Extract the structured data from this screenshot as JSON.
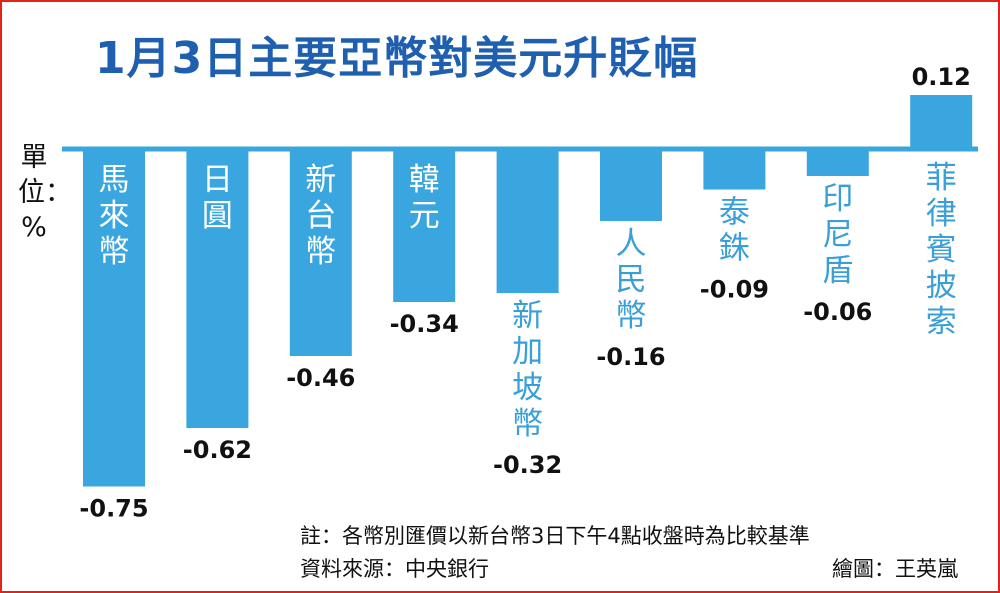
{
  "header": {
    "title": "1月3日主要亞幣對美元升貶幅"
  },
  "unit_label": "單位：%",
  "chart_data": {
    "type": "bar",
    "title": "1月3日主要亞幣對美元升貶幅",
    "ylabel": "單位：%",
    "categories": [
      "馬來幣",
      "日圓",
      "新台幣",
      "韓元",
      "新加坡幣",
      "人民幣",
      "泰銖",
      "印尼盾",
      "菲律賓披索"
    ],
    "values": [
      -0.75,
      -0.62,
      -0.46,
      -0.34,
      -0.32,
      -0.16,
      -0.09,
      -0.06,
      0.12
    ],
    "value_labels": [
      "-0.75",
      "-0.62",
      "-0.46",
      "-0.34",
      "-0.32",
      "-0.16",
      "-0.09",
      "-0.06",
      "0.12"
    ],
    "ylim": [
      -0.75,
      0.12
    ],
    "grid": false,
    "legend": "none",
    "bar_color": "#3aa6e0",
    "axis_color": "#3aa6e0"
  },
  "footer": {
    "note": "註：各幣別匯價以新台幣3日下午4點收盤時為比較基準",
    "source": "資料來源：中央銀行",
    "credit": "繪圖：王英嵐"
  }
}
